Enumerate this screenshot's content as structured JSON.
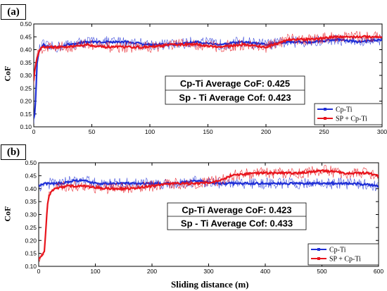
{
  "panels": [
    {
      "label": "(a)",
      "ylabel": "CoF",
      "annotations": [
        "Cp-Ti Average CoF: 0.425",
        "Sp - Ti Average Cof: 0.423"
      ]
    },
    {
      "label": "(b)",
      "ylabel": "CoF",
      "annotations": [
        "Cp-Ti Average CoF: 0.423",
        "Sp - Ti Average Cof: 0.433"
      ]
    }
  ],
  "xlabel": "Sliding distance (m)",
  "colors": {
    "cpti": "#1f2fd6",
    "spti": "#e8141c"
  },
  "chart_data": [
    {
      "type": "line",
      "title": "",
      "xlabel": "",
      "ylabel": "CoF",
      "xlim": [
        0,
        300
      ],
      "ylim": [
        0.1,
        0.5
      ],
      "xticks": [
        0,
        50,
        100,
        150,
        200,
        250,
        300
      ],
      "yticks": [
        0.1,
        0.15,
        0.2,
        0.25,
        0.3,
        0.35,
        0.4,
        0.45,
        0.5
      ],
      "legend": {
        "position": "bottom-right",
        "entries": [
          "Cp-Ti",
          "SP + Cp-Ti"
        ]
      },
      "series": [
        {
          "name": "Cp-Ti",
          "x": [
            0,
            1,
            2,
            3,
            5,
            8,
            12,
            20,
            30,
            45,
            60,
            80,
            100,
            120,
            140,
            160,
            180,
            200,
            220,
            240,
            260,
            280,
            300
          ],
          "y": [
            0.13,
            0.16,
            0.25,
            0.36,
            0.4,
            0.42,
            0.41,
            0.41,
            0.42,
            0.43,
            0.43,
            0.43,
            0.42,
            0.42,
            0.43,
            0.42,
            0.43,
            0.42,
            0.43,
            0.43,
            0.44,
            0.43,
            0.44
          ]
        },
        {
          "name": "SP + Cp-Ti",
          "x": [
            0,
            1,
            2,
            3,
            5,
            8,
            12,
            20,
            30,
            45,
            60,
            80,
            100,
            120,
            140,
            160,
            180,
            200,
            220,
            240,
            260,
            280,
            300
          ],
          "y": [
            0.28,
            0.33,
            0.35,
            0.37,
            0.4,
            0.41,
            0.41,
            0.41,
            0.41,
            0.42,
            0.41,
            0.41,
            0.41,
            0.42,
            0.42,
            0.41,
            0.42,
            0.41,
            0.44,
            0.44,
            0.45,
            0.45,
            0.45
          ]
        }
      ]
    },
    {
      "type": "line",
      "title": "",
      "xlabel": "Sliding distance (m)",
      "ylabel": "CoF",
      "xlim": [
        0,
        600
      ],
      "ylim": [
        0.1,
        0.5
      ],
      "xticks": [
        0,
        100,
        200,
        300,
        400,
        500,
        600
      ],
      "yticks": [
        0.1,
        0.15,
        0.2,
        0.25,
        0.3,
        0.35,
        0.4,
        0.45,
        0.5
      ],
      "legend": {
        "position": "bottom-right",
        "entries": [
          "Cp-Ti",
          "SP + Cp-Ti"
        ]
      },
      "series": [
        {
          "name": "Cp-Ti",
          "x": [
            0,
            10,
            20,
            40,
            60,
            80,
            100,
            130,
            160,
            200,
            240,
            280,
            320,
            360,
            400,
            440,
            480,
            520,
            560,
            600
          ],
          "y": [
            0.41,
            0.42,
            0.42,
            0.42,
            0.43,
            0.43,
            0.42,
            0.42,
            0.42,
            0.42,
            0.42,
            0.43,
            0.42,
            0.42,
            0.42,
            0.42,
            0.42,
            0.42,
            0.42,
            0.41
          ]
        },
        {
          "name": "SP + Cp-Ti",
          "x": [
            0,
            5,
            10,
            13,
            15,
            18,
            22,
            30,
            50,
            80,
            120,
            160,
            200,
            240,
            280,
            320,
            340,
            380,
            420,
            460,
            500,
            540,
            580,
            600
          ],
          "y": [
            0.13,
            0.14,
            0.16,
            0.25,
            0.33,
            0.37,
            0.39,
            0.4,
            0.41,
            0.41,
            0.4,
            0.4,
            0.41,
            0.42,
            0.42,
            0.43,
            0.45,
            0.46,
            0.46,
            0.46,
            0.47,
            0.46,
            0.46,
            0.45
          ]
        }
      ]
    }
  ]
}
